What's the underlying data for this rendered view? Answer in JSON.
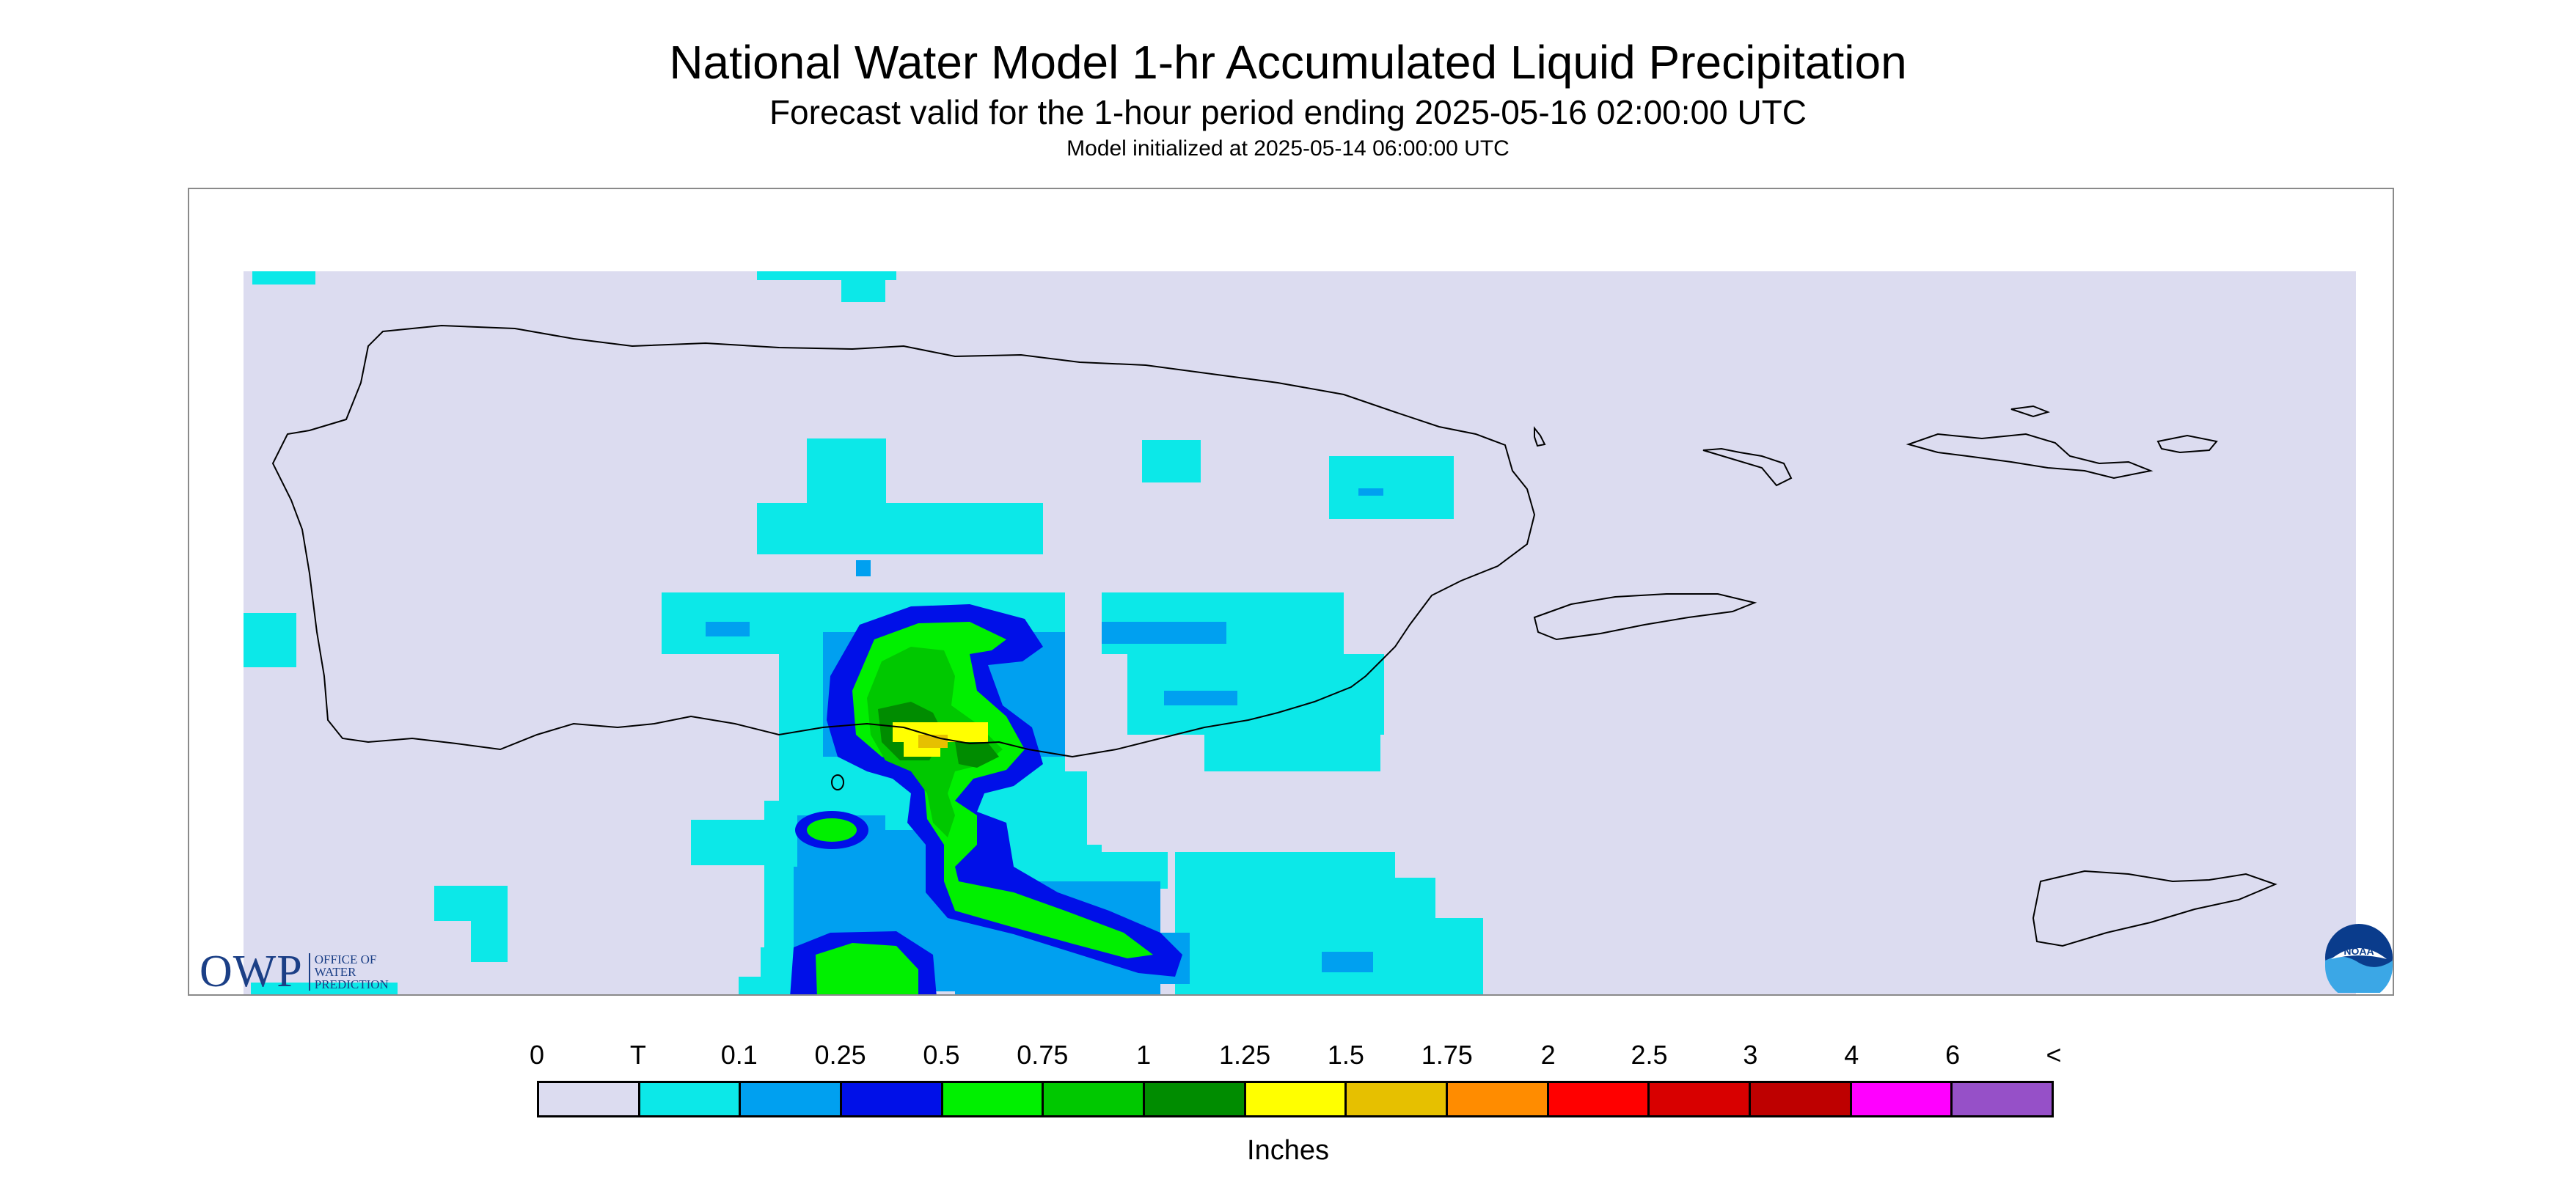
{
  "title": "National Water Model 1-hr Accumulated Liquid Precipitation",
  "subtitle": "Forecast valid for the 1-hour period ending 2025-05-16 02:00:00 UTC",
  "init_text": "Model initialized at 2025-05-14 06:00:00 UTC",
  "logos": {
    "owp_text": "OWP",
    "owp_sub_1": "OFFICE OF",
    "owp_sub_2": "WATER",
    "owp_sub_3": "PREDICTION",
    "noaa_text": "NOAA"
  },
  "legend": {
    "unit": "Inches",
    "labels": [
      "0",
      "T",
      "0.1",
      "0.25",
      "0.5",
      "0.75",
      "1",
      "1.25",
      "1.5",
      "1.75",
      "2",
      "2.5",
      "3",
      "4",
      "6",
      "<"
    ],
    "colors": [
      "#dcdcf0",
      "#0ce8e8",
      "#00a0f0",
      "#0010e8",
      "#00f000",
      "#00c800",
      "#008c00",
      "#ffff00",
      "#e6c000",
      "#ff8c00",
      "#ff0000",
      "#d80000",
      "#be0000",
      "#ff00ff",
      "#9650c8"
    ]
  },
  "map": {
    "region": "Puerto Rico and U.S. Virgin Islands",
    "background_color": "#dcdcf0",
    "precip_max_category": "1.25-1.5 in",
    "precip_core_location": "south-central coast of Puerto Rico"
  }
}
